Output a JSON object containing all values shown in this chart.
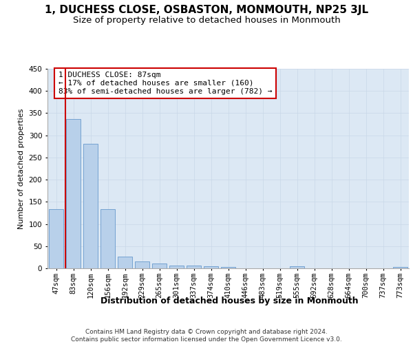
{
  "title": "1, DUCHESS CLOSE, OSBASTON, MONMOUTH, NP25 3JL",
  "subtitle": "Size of property relative to detached houses in Monmouth",
  "xlabel": "Distribution of detached houses by size in Monmouth",
  "ylabel": "Number of detached properties",
  "categories": [
    "47sqm",
    "83sqm",
    "120sqm",
    "156sqm",
    "192sqm",
    "229sqm",
    "265sqm",
    "301sqm",
    "337sqm",
    "374sqm",
    "410sqm",
    "446sqm",
    "483sqm",
    "519sqm",
    "555sqm",
    "592sqm",
    "628sqm",
    "664sqm",
    "700sqm",
    "737sqm",
    "773sqm"
  ],
  "values": [
    134,
    336,
    281,
    134,
    27,
    16,
    11,
    6,
    6,
    4,
    3,
    0,
    0,
    0,
    4,
    0,
    0,
    0,
    0,
    0,
    3
  ],
  "bar_color": "#b8d0ea",
  "bar_edge_color": "#6699cc",
  "grid_color": "#c8d8e8",
  "bg_color": "#dce8f4",
  "vline_color": "#cc0000",
  "annotation_text": "1 DUCHESS CLOSE: 87sqm\n← 17% of detached houses are smaller (160)\n83% of semi-detached houses are larger (782) →",
  "annotation_box_color": "#cc0000",
  "ylim": [
    0,
    450
  ],
  "yticks": [
    0,
    50,
    100,
    150,
    200,
    250,
    300,
    350,
    400,
    450
  ],
  "footer_text": "Contains HM Land Registry data © Crown copyright and database right 2024.\nContains public sector information licensed under the Open Government Licence v3.0.",
  "title_fontsize": 11,
  "subtitle_fontsize": 9.5,
  "xlabel_fontsize": 9,
  "ylabel_fontsize": 8,
  "tick_fontsize": 7.5,
  "annotation_fontsize": 8
}
